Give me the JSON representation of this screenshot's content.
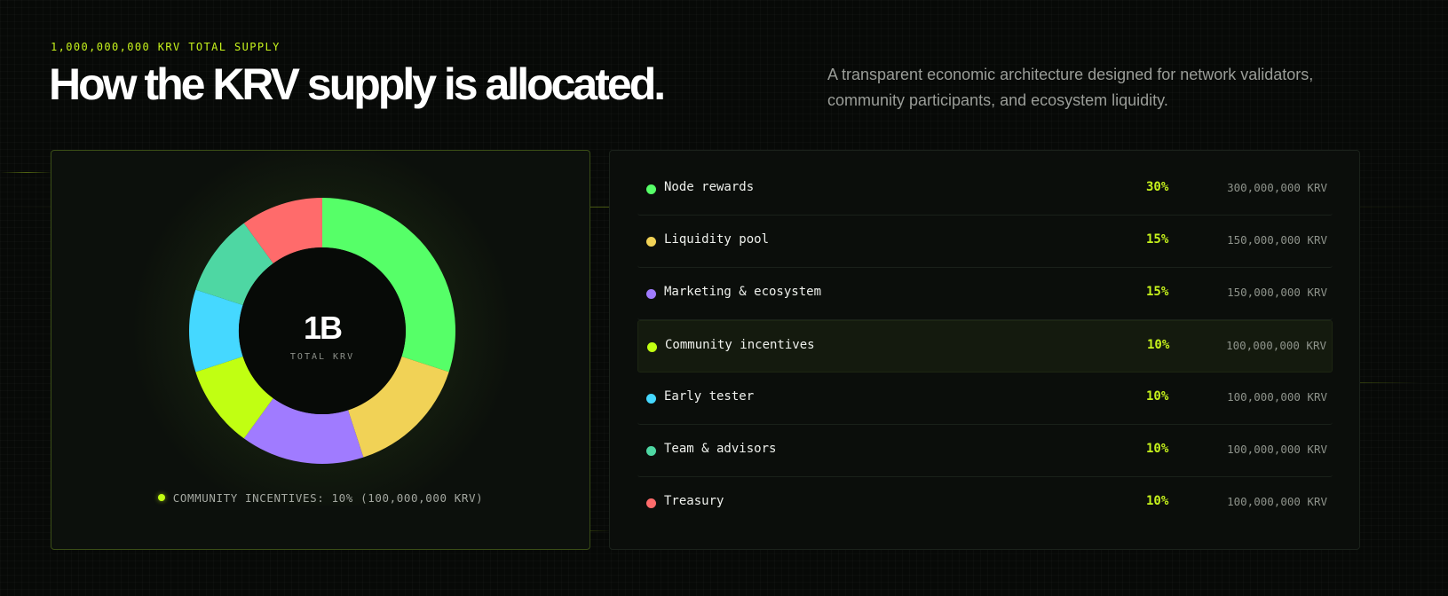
{
  "header": {
    "eyebrow": "1,000,000,000 KRV TOTAL SUPPLY",
    "title": "How the KRV supply is allocated.",
    "description": "A transparent economic architecture designed for network validators, community participants, and ecosystem liquidity."
  },
  "chart_data": {
    "type": "pie",
    "donut": true,
    "center_value": "1B",
    "center_label": "TOTAL KRV",
    "categories": [
      "Node rewards",
      "Liquidity pool",
      "Marketing & ecosystem",
      "Community incentives",
      "Early tester",
      "Team & advisors",
      "Treasury"
    ],
    "values": [
      30,
      15,
      15,
      10,
      10,
      10,
      10
    ],
    "colors": [
      "#56ff68",
      "#f1d256",
      "#a07bff",
      "#c1ff12",
      "#45d8ff",
      "#4ed7a3",
      "#ff6b6b"
    ],
    "highlight": "COMMUNITY INCENTIVES: 10% (100,000,000 KRV)"
  },
  "allocations": [
    {
      "name": "Node rewards",
      "pct": "30%",
      "amount": "300,000,000 KRV",
      "color": "#56ff68"
    },
    {
      "name": "Liquidity pool",
      "pct": "15%",
      "amount": "150,000,000 KRV",
      "color": "#f1d256"
    },
    {
      "name": "Marketing & ecosystem",
      "pct": "15%",
      "amount": "150,000,000 KRV",
      "color": "#a07bff"
    },
    {
      "name": "Community incentives",
      "pct": "10%",
      "amount": "100,000,000 KRV",
      "color": "#c1ff12"
    },
    {
      "name": "Early tester",
      "pct": "10%",
      "amount": "100,000,000 KRV",
      "color": "#45d8ff"
    },
    {
      "name": "Team & advisors",
      "pct": "10%",
      "amount": "100,000,000 KRV",
      "color": "#4ed7a3"
    },
    {
      "name": "Treasury",
      "pct": "10%",
      "amount": "100,000,000 KRV",
      "color": "#ff6b6b"
    }
  ],
  "active_index": 3
}
